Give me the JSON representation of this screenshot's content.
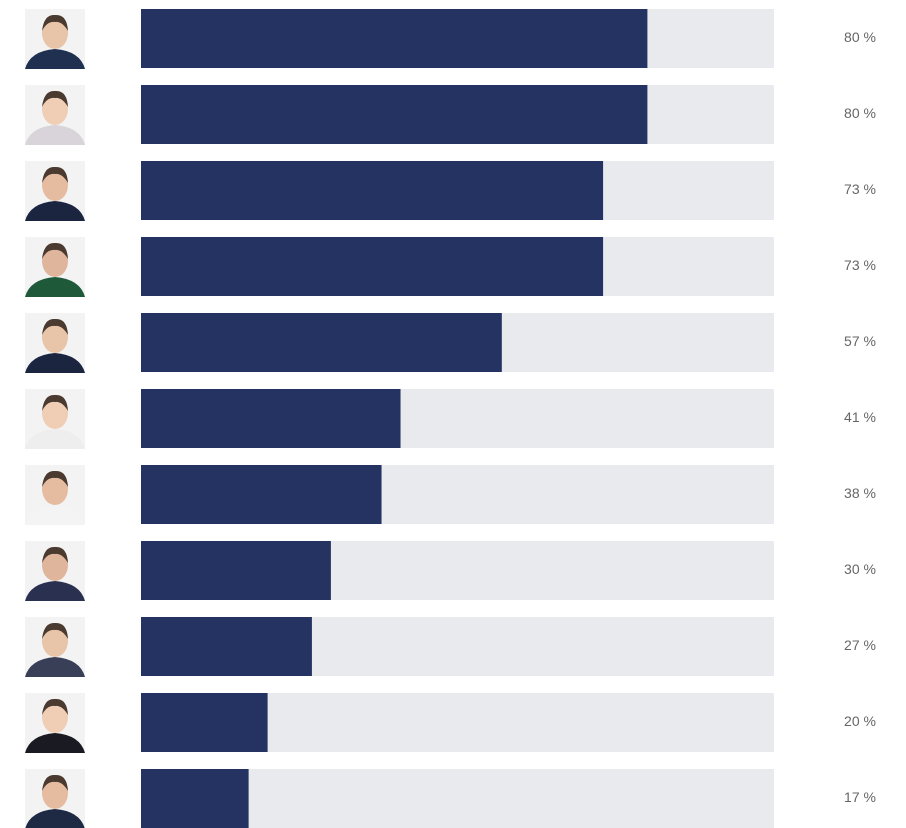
{
  "chart_data": {
    "type": "bar",
    "orientation": "horizontal",
    "categories": [
      null,
      null,
      null,
      null,
      null,
      null,
      null,
      null,
      null,
      null,
      null
    ],
    "values": [
      80,
      80,
      73,
      73,
      57,
      41,
      38,
      30,
      27,
      20,
      17
    ],
    "value_labels": [
      "80 %",
      "80 %",
      "73 %",
      "73 %",
      "57 %",
      "41 %",
      "38 %",
      "30 %",
      "27 %",
      "20 %",
      "17 %"
    ],
    "xlim": [
      0,
      100
    ],
    "color": "#243361",
    "track_color": "#e8eaee"
  }
}
